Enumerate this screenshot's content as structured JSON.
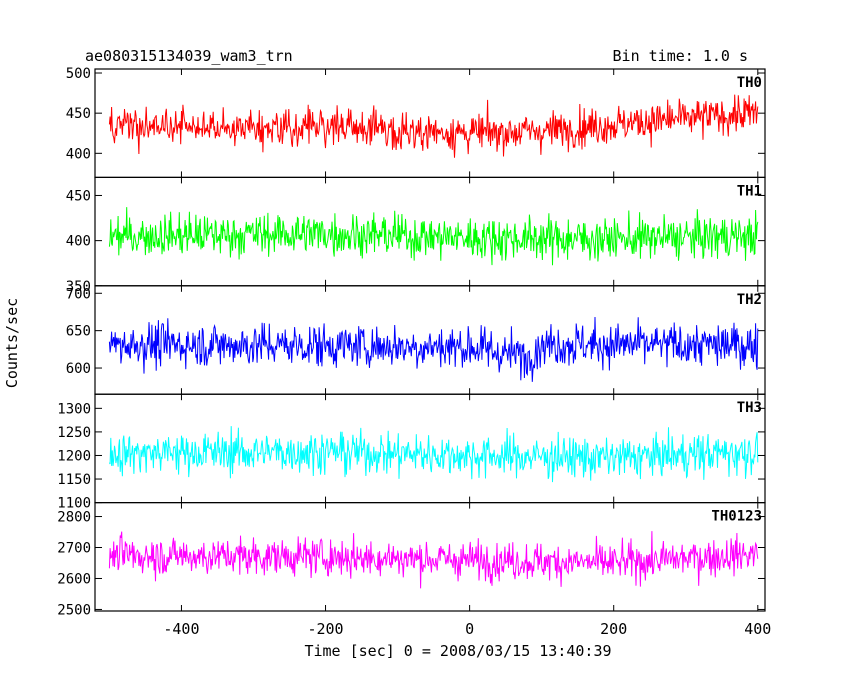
{
  "chart_data": {
    "type": "line",
    "title": "ae080315134039_wam3_trn",
    "subtitle": "Bin time: 1.0 s",
    "xlabel": "Time [sec] 0 = 2008/03/15 13:40:39",
    "ylabel": "Counts/sec",
    "xlim": [
      -520,
      410
    ],
    "x_range_data": [
      -500,
      400
    ],
    "bin_time_s": 1.0,
    "xticks": [
      -400,
      -200,
      0,
      200,
      400
    ],
    "grid": false,
    "panels": [
      {
        "name": "TH0",
        "color": "#ff0000",
        "ylim": [
          370,
          505
        ],
        "yticks": [
          400,
          450,
          500
        ],
        "mean": 432,
        "noise_sd": 20,
        "trend": [
          [
            -500,
            432
          ],
          [
            -200,
            433
          ],
          [
            0,
            425
          ],
          [
            100,
            428
          ],
          [
            250,
            440
          ],
          [
            400,
            450
          ]
        ]
      },
      {
        "name": "TH1",
        "color": "#00ff00",
        "ylim": [
          350,
          470
        ],
        "yticks": [
          350,
          400,
          450
        ],
        "mean": 405,
        "noise_sd": 20,
        "trend": [
          [
            -500,
            405
          ],
          [
            -200,
            408
          ],
          [
            0,
            403
          ],
          [
            200,
            402
          ],
          [
            400,
            405
          ]
        ]
      },
      {
        "name": "TH2",
        "color": "#0000ff",
        "ylim": [
          565,
          710
        ],
        "yticks": [
          600,
          650,
          700
        ],
        "mean": 632,
        "noise_sd": 25,
        "trend": [
          [
            -500,
            632
          ],
          [
            -200,
            630
          ],
          [
            0,
            628
          ],
          [
            80,
            615
          ],
          [
            100,
            632
          ],
          [
            400,
            630
          ]
        ]
      },
      {
        "name": "TH3",
        "color": "#00ffff",
        "ylim": [
          1100,
          1330
        ],
        "yticks": [
          1100,
          1150,
          1200,
          1250,
          1300
        ],
        "mean": 1205,
        "noise_sd": 38,
        "trend": [
          [
            -500,
            1205
          ],
          [
            -200,
            1208
          ],
          [
            0,
            1200
          ],
          [
            200,
            1195
          ],
          [
            400,
            1208
          ]
        ]
      },
      {
        "name": "TH0123",
        "color": "#ff00ff",
        "ylim": [
          2495,
          2845
        ],
        "yticks": [
          2500,
          2600,
          2700,
          2800
        ],
        "mean": 2670,
        "noise_sd": 52,
        "trend": [
          [
            -500,
            2675
          ],
          [
            -200,
            2670
          ],
          [
            0,
            2660
          ],
          [
            200,
            2650
          ],
          [
            400,
            2680
          ]
        ]
      }
    ]
  }
}
